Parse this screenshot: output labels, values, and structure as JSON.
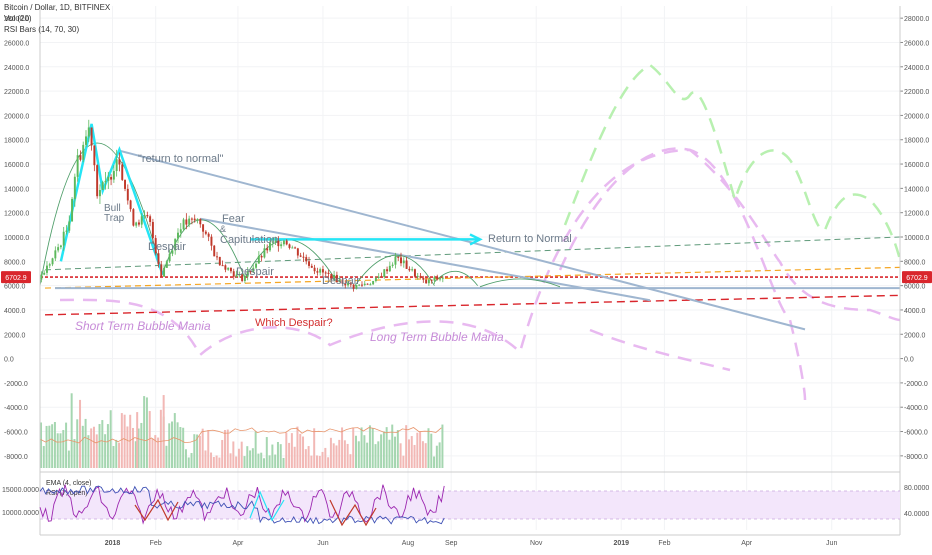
{
  "header": {
    "symbol_line": "Bitcoin / Dollar, 1D, BITFINEX",
    "vol_line": "Vol (20)",
    "rsi_bars_line": "RSI Bars (14, 70, 30)"
  },
  "price_badge": "6702.9",
  "colors": {
    "up": "#5cb85c",
    "down": "#c0392b",
    "vol_up": "#a5d6b0",
    "vol_down": "#f2b8b5",
    "trend": "#9fb6d0",
    "cyan": "#25e5f5",
    "red_dash": "#d9262c",
    "orange_dash": "#f5a623",
    "green_dash": "#4caf50",
    "pink_proj": "#e8b9f0",
    "green_proj": "#b8f0b0",
    "annot_purple": "#c78bd8",
    "annot_red": "#d32f2f",
    "annot_gray": "#6c7a89"
  },
  "annotations": {
    "return_to_normal_quote": "\"return to normal\"",
    "bull_trap": "Bull\nTrap",
    "despair_1": "Despair",
    "fear": "Fear",
    "and": "&",
    "capitulation": "Capitulation",
    "despair_2": "Despair",
    "despair_3": "Despair",
    "return_to_normal": "Return to Normal",
    "short_term": "Short Term Bubble Mania",
    "which_despair": "Which Despair?",
    "long_term": "Long Term Bubble Mania"
  },
  "indicator_panel": {
    "ema_label": "EMA (4, close)",
    "rsi_label": "RSI (7, open)",
    "left_ticks": [
      "15000.0000",
      "10000.0000"
    ],
    "right_ticks": [
      "80.0000",
      "40.0000"
    ]
  },
  "chart_data": {
    "type": "candlestick",
    "title": "Bitcoin / Dollar, 1D, BITFINEX",
    "y_ticks": [
      "28000.0",
      "26000.0",
      "24000.0",
      "22000.0",
      "20000.0",
      "18000.0",
      "16000.0",
      "14000.0",
      "12000.0",
      "10000.0",
      "8000.0",
      "6000.0",
      "4000.0",
      "2000.0",
      "0.0",
      "-2000.0",
      "-4000.0",
      "-6000.0",
      "-8000.0"
    ],
    "ylim": [
      -9000,
      29000
    ],
    "x_ticks": [
      "2018",
      "Feb",
      "Apr",
      "Jun",
      "Aug",
      "Sep",
      "Nov",
      "2019",
      "Feb",
      "Apr",
      "Jun"
    ],
    "last_price": 6702.9,
    "series_price_path": [
      {
        "date": "2017-11-10",
        "price": 6500
      },
      {
        "date": "2017-11-20",
        "price": 8200
      },
      {
        "date": "2017-12-01",
        "price": 10800
      },
      {
        "date": "2017-12-07",
        "price": 16000
      },
      {
        "date": "2017-12-17",
        "price": 19200
      },
      {
        "date": "2017-12-22",
        "price": 13800
      },
      {
        "date": "2017-12-29",
        "price": 14300
      },
      {
        "date": "2018-01-06",
        "price": 17000
      },
      {
        "date": "2018-01-16",
        "price": 11300
      },
      {
        "date": "2018-01-28",
        "price": 11500
      },
      {
        "date": "2018-02-06",
        "price": 6900
      },
      {
        "date": "2018-02-20",
        "price": 11000
      },
      {
        "date": "2018-03-05",
        "price": 11400
      },
      {
        "date": "2018-03-18",
        "price": 8200
      },
      {
        "date": "2018-04-01",
        "price": 6800
      },
      {
        "date": "2018-04-06",
        "price": 6600
      },
      {
        "date": "2018-04-25",
        "price": 9300
      },
      {
        "date": "2018-05-05",
        "price": 9800
      },
      {
        "date": "2018-05-28",
        "price": 7300
      },
      {
        "date": "2018-06-24",
        "price": 5900
      },
      {
        "date": "2018-07-10",
        "price": 6400
      },
      {
        "date": "2018-07-25",
        "price": 8300
      },
      {
        "date": "2018-08-14",
        "price": 6200
      },
      {
        "date": "2018-08-27",
        "price": 6702.9
      }
    ],
    "volume_note": "volume histogram (no printed values)",
    "indicator_series": [
      "EMA (4, close)",
      "RSI (7, open)"
    ]
  }
}
